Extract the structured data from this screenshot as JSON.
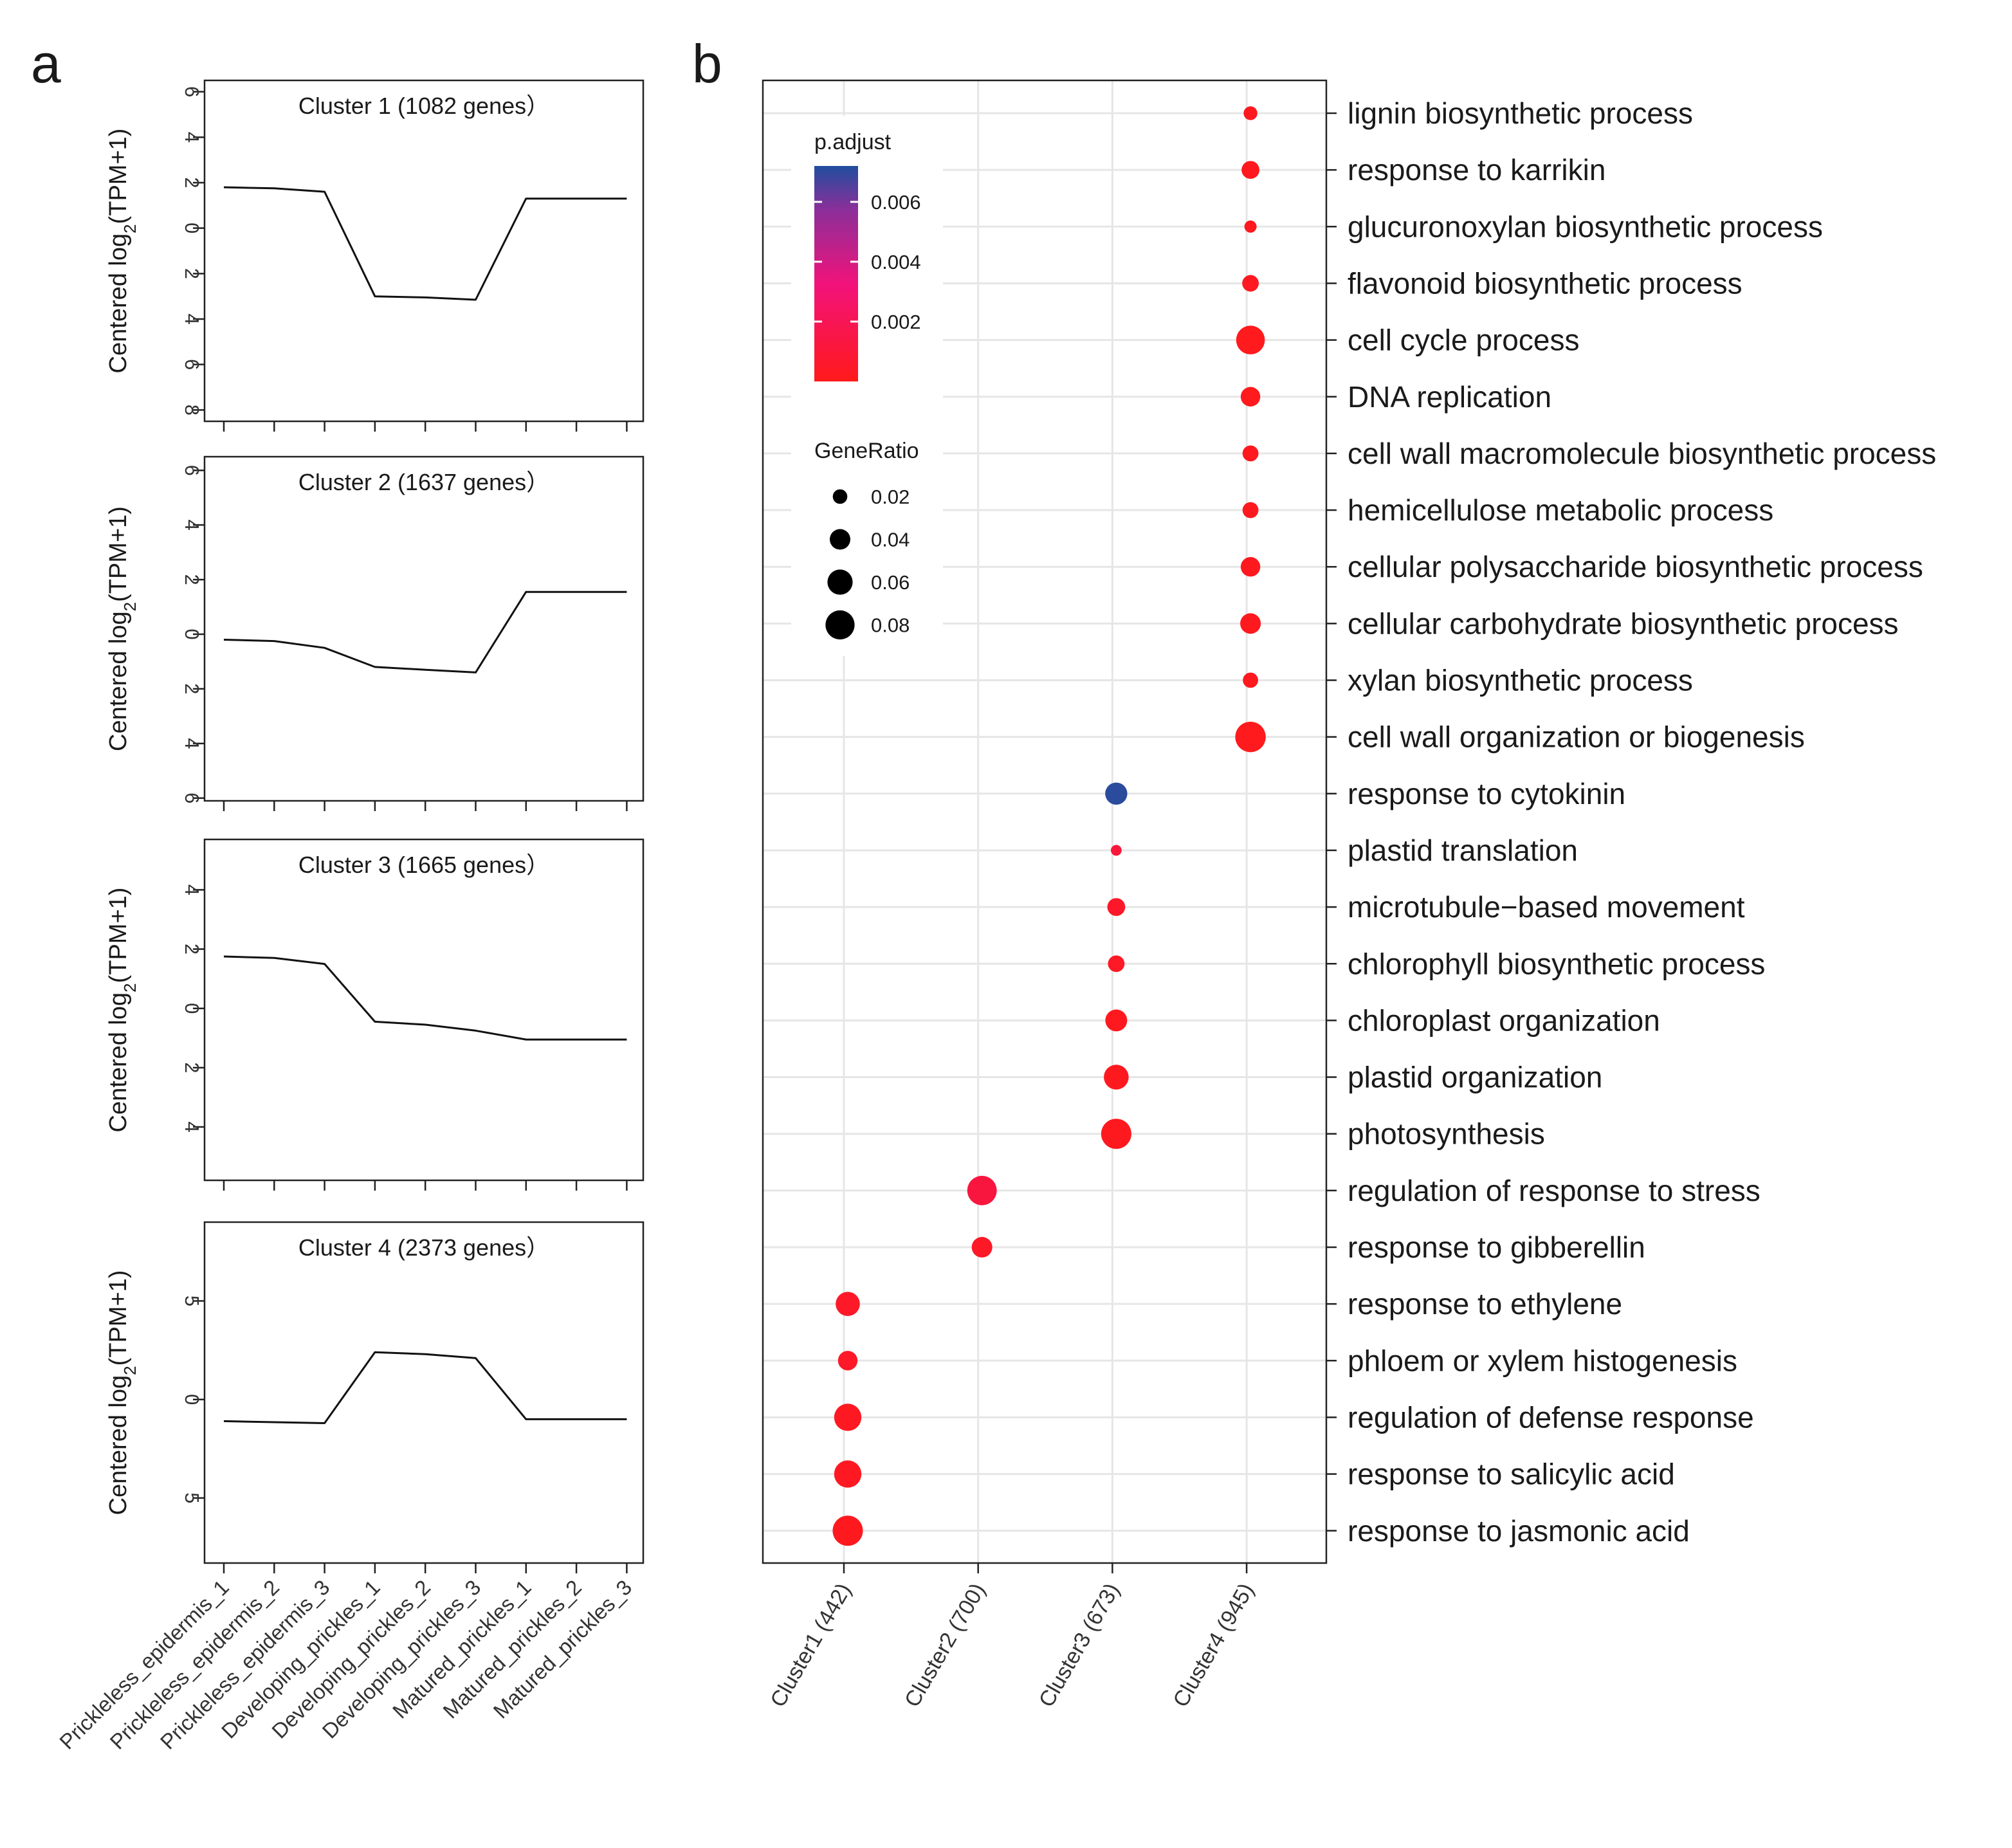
{
  "panel_a_label": "a",
  "panel_b_label": "b",
  "panel_a": {
    "y_label_prefix": "Centered log",
    "y_label_sub": "2",
    "y_label_suffix": "(TPM+1)",
    "x_categories": [
      "Prickleless_epidermis_1",
      "Prickleless_epidermis_2",
      "Prickleless_epidermis_3",
      "Developing_prickles_1",
      "Developing_prickles_2",
      "Developing_prickles_3",
      "Matured_prickles_1",
      "Matured_prickles_2",
      "Matured_prickles_3"
    ]
  },
  "panel_b": {
    "x_categories": [
      "Cluster1 (442)",
      "Cluster2 (700)",
      "Cluster3 (673)",
      "Cluster4 (945)"
    ],
    "legend": {
      "color_title": "p.adjust",
      "color_ticks": [
        "0.006",
        "0.004",
        "0.002"
      ],
      "size_title": "GeneRatio",
      "size_ticks": [
        "0.02",
        "0.04",
        "0.06",
        "0.08"
      ]
    }
  },
  "chart_data": [
    {
      "type": "line",
      "title": "Cluster 1 (1082 genes）",
      "ylabel": "Centered log2(TPM+1)",
      "ylim": [
        -8.5,
        6.5
      ],
      "yticks": [
        6,
        4,
        2,
        0,
        -2,
        -4,
        -6,
        -8
      ],
      "ytick_labels": [
        "6",
        "4",
        "2",
        "0",
        "2",
        "4",
        "6",
        "8"
      ],
      "values": [
        1.8,
        1.75,
        1.6,
        -3.0,
        -3.05,
        -3.15,
        1.3,
        1.3,
        1.3
      ]
    },
    {
      "type": "line",
      "title": "Cluster 2 (1637 genes）",
      "ylabel": "Centered log2(TPM+1)",
      "ylim": [
        -6.1,
        6.5
      ],
      "yticks": [
        6,
        4,
        2,
        0,
        -2,
        -4,
        -6
      ],
      "ytick_labels": [
        "6",
        "4",
        "2",
        "0",
        "2",
        "4",
        "6"
      ],
      "values": [
        -0.2,
        -0.25,
        -0.5,
        -1.2,
        -1.3,
        -1.4,
        1.55,
        1.55,
        1.55
      ]
    },
    {
      "type": "line",
      "title": "Cluster 3 (1665 genes）",
      "ylabel": "Centered log2(TPM+1)",
      "ylim": [
        -5.8,
        5.7
      ],
      "yticks": [
        4,
        2,
        0,
        -2,
        -4
      ],
      "ytick_labels": [
        "4",
        "2",
        "0",
        "2",
        "4"
      ],
      "values": [
        1.75,
        1.7,
        1.5,
        -0.45,
        -0.55,
        -0.75,
        -1.05,
        -1.05,
        -1.05
      ]
    },
    {
      "type": "line",
      "title": "Cluster 4 (2373 genes）",
      "ylabel": "Centered log2(TPM+1)",
      "ylim": [
        -8.3,
        9.0
      ],
      "yticks": [
        5,
        0,
        -5
      ],
      "ytick_labels": [
        "5",
        "0",
        "5"
      ],
      "values": [
        -1.1,
        -1.15,
        -1.2,
        2.4,
        2.3,
        2.1,
        -1.0,
        -1.0,
        -1.0
      ]
    },
    {
      "type": "scatter",
      "title": "",
      "color_scale": {
        "label": "p.adjust",
        "range": [
          0,
          0.007
        ],
        "low_color": "#ff1a1a",
        "mid_color": "#ee1177",
        "high_color": "#1f4e9e"
      },
      "size_scale": {
        "label": "GeneRatio",
        "range": [
          0.01,
          0.09
        ]
      },
      "clusters": [
        "Cluster1 (442)",
        "Cluster2 (700)",
        "Cluster3 (673)",
        "Cluster4 (945)"
      ],
      "terms": [
        "lignin biosynthetic process",
        "response to karrikin",
        "glucuronoxylan biosynthetic process",
        "flavonoid biosynthetic process",
        "cell cycle process",
        "DNA replication",
        "cell wall macromolecule biosynthetic process",
        "hemicellulose metabolic process",
        "cellular polysaccharide biosynthetic process",
        "cellular carbohydrate biosynthetic process",
        "xylan biosynthetic process",
        "cell wall organization or biogenesis",
        "response to cytokinin",
        "plastid translation",
        "microtubule−based movement",
        "chlorophyll biosynthetic process",
        "chloroplast organization",
        "plastid organization",
        "photosynthesis",
        "regulation of response to stress",
        "response to gibberellin",
        "response to ethylene",
        "phloem or xylem histogenesis",
        "regulation of defense response",
        "response to salicylic acid",
        "response to jasmonic acid"
      ],
      "points": [
        {
          "term": "lignin biosynthetic process",
          "cluster": "Cluster4 (945)",
          "gene_ratio": 0.018,
          "p_adjust": 0.0002
        },
        {
          "term": "response to karrikin",
          "cluster": "Cluster4 (945)",
          "gene_ratio": 0.03,
          "p_adjust": 0.0002
        },
        {
          "term": "glucuronoxylan biosynthetic process",
          "cluster": "Cluster4 (945)",
          "gene_ratio": 0.014,
          "p_adjust": 0.0002
        },
        {
          "term": "flavonoid biosynthetic process",
          "cluster": "Cluster4 (945)",
          "gene_ratio": 0.026,
          "p_adjust": 0.0003
        },
        {
          "term": "cell cycle process",
          "cluster": "Cluster4 (945)",
          "gene_ratio": 0.078,
          "p_adjust": 0.0001
        },
        {
          "term": "DNA replication",
          "cluster": "Cluster4 (945)",
          "gene_ratio": 0.036,
          "p_adjust": 0.0001
        },
        {
          "term": "cell wall macromolecule biosynthetic process",
          "cluster": "Cluster4 (945)",
          "gene_ratio": 0.024,
          "p_adjust": 0.0002
        },
        {
          "term": "hemicellulose metabolic process",
          "cluster": "Cluster4 (945)",
          "gene_ratio": 0.024,
          "p_adjust": 0.0002
        },
        {
          "term": "cellular polysaccharide biosynthetic process",
          "cluster": "Cluster4 (945)",
          "gene_ratio": 0.036,
          "p_adjust": 0.0002
        },
        {
          "term": "cellular carbohydrate biosynthetic process",
          "cluster": "Cluster4 (945)",
          "gene_ratio": 0.04,
          "p_adjust": 0.0002
        },
        {
          "term": "xylan biosynthetic process",
          "cluster": "Cluster4 (945)",
          "gene_ratio": 0.022,
          "p_adjust": 0.0002
        },
        {
          "term": "cell wall organization or biogenesis",
          "cluster": "Cluster4 (945)",
          "gene_ratio": 0.088,
          "p_adjust": 0.0001
        },
        {
          "term": "response to cytokinin",
          "cluster": "Cluster3 (673)",
          "gene_ratio": 0.046,
          "p_adjust": 0.0068
        },
        {
          "term": "plastid translation",
          "cluster": "Cluster3 (673)",
          "gene_ratio": 0.011,
          "p_adjust": 0.0012
        },
        {
          "term": "microtubule−based movement",
          "cluster": "Cluster3 (673)",
          "gene_ratio": 0.03,
          "p_adjust": 0.0006
        },
        {
          "term": "chlorophyll biosynthetic process",
          "cluster": "Cluster3 (673)",
          "gene_ratio": 0.026,
          "p_adjust": 0.0004
        },
        {
          "term": "chloroplast organization",
          "cluster": "Cluster3 (673)",
          "gene_ratio": 0.045,
          "p_adjust": 0.0002
        },
        {
          "term": "plastid organization",
          "cluster": "Cluster3 (673)",
          "gene_ratio": 0.058,
          "p_adjust": 0.0002
        },
        {
          "term": "photosynthesis",
          "cluster": "Cluster3 (673)",
          "gene_ratio": 0.086,
          "p_adjust": 0.0002
        },
        {
          "term": "regulation of response to stress",
          "cluster": "Cluster2 (700)",
          "gene_ratio": 0.082,
          "p_adjust": 0.0014
        },
        {
          "term": "response to gibberellin",
          "cluster": "Cluster2 (700)",
          "gene_ratio": 0.04,
          "p_adjust": 0.0004
        },
        {
          "term": "response to ethylene",
          "cluster": "Cluster1 (442)",
          "gene_ratio": 0.055,
          "p_adjust": 0.0005
        },
        {
          "term": "phloem or xylem histogenesis",
          "cluster": "Cluster1 (442)",
          "gene_ratio": 0.036,
          "p_adjust": 0.0005
        },
        {
          "term": "regulation of defense response",
          "cluster": "Cluster1 (442)",
          "gene_ratio": 0.07,
          "p_adjust": 0.0003
        },
        {
          "term": "response to salicylic acid",
          "cluster": "Cluster1 (442)",
          "gene_ratio": 0.07,
          "p_adjust": 0.0003
        },
        {
          "term": "response to jasmonic acid",
          "cluster": "Cluster1 (442)",
          "gene_ratio": 0.086,
          "p_adjust": 0.0002
        }
      ]
    }
  ]
}
